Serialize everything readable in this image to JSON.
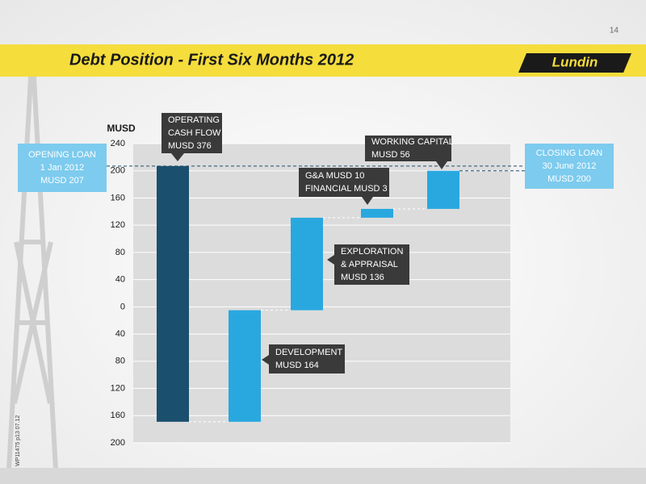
{
  "page_number": "14",
  "logo": "Lundin",
  "footer_code": "WP11475 p13 07.12",
  "chart_data": {
    "type": "waterfall",
    "title": "Debt Position - First Six Months 2012",
    "y_label": "MUSD",
    "opening": 207,
    "closing": 200,
    "values": [
      -376,
      164,
      136,
      13,
      56
    ],
    "colors": [
      "#1b4f6e",
      "#29a8e0",
      "#29a8e0",
      "#29a8e0",
      "#29a8e0"
    ],
    "ylim": [
      -200,
      240
    ],
    "yticks": [
      240,
      200,
      160,
      120,
      80,
      40,
      0,
      {
        "value": -40,
        "label": "40"
      },
      {
        "value": -80,
        "label": "80"
      },
      {
        "value": -120,
        "label": "120"
      },
      {
        "value": -160,
        "label": "160"
      },
      {
        "value": -200,
        "label": "200"
      }
    ],
    "grid": true,
    "annotations": [
      [
        "OPERATING",
        "CASH FLOW",
        "MUSD 376"
      ],
      [
        "DEVELOPMENT",
        "MUSD  164"
      ],
      [
        "EXPLORATION",
        "& APPRAISAL",
        "MUSD  136"
      ],
      [
        "G&A MUSD 10",
        "FINANCIAL MUSD 3"
      ],
      [
        "WORKING CAPITAL",
        "MUSD 56"
      ]
    ],
    "opening_label": [
      "OPENING LOAN",
      "1 Jan 2012",
      "MUSD 207"
    ],
    "closing_label": [
      "CLOSING LOAN",
      "30 June 2012",
      "MUSD 200"
    ]
  }
}
